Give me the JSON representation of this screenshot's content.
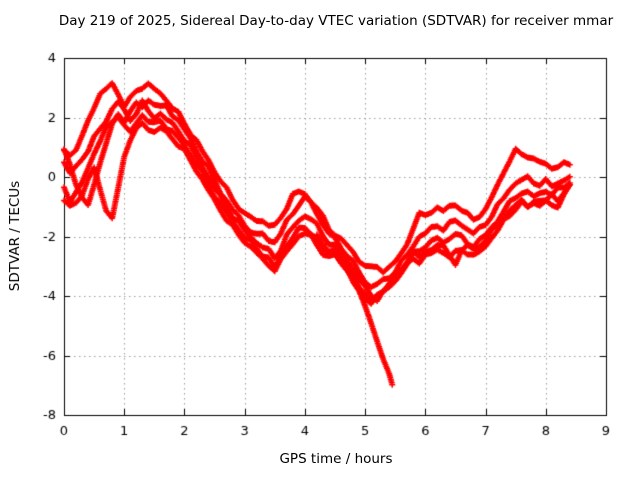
{
  "chart_data": {
    "type": "scatter",
    "title": "Day 219 of 2025, Sidereal Day-to-day VTEC variation (SDTVAR) for receiver mmar",
    "xlabel": "GPS time / hours",
    "ylabel": "SDTVAR / TECUs",
    "xlim": [
      0,
      9
    ],
    "ylim": [
      -8,
      4
    ],
    "x_ticks": [
      0,
      1,
      2,
      3,
      4,
      5,
      6,
      7,
      8,
      9
    ],
    "y_ticks": [
      -8,
      -6,
      -4,
      -2,
      0,
      2,
      4
    ],
    "grid": true,
    "legend": "none",
    "marker": "plus",
    "colors": {
      "marker": "#ff0000",
      "grid": "#9c9c9c",
      "frame": "#000000",
      "text": "#000000"
    },
    "x_step": 0.1,
    "series": [
      {
        "name": "trace-1",
        "x_start": 0.0,
        "values": [
          0.9,
          0.75,
          0.95,
          1.3,
          1.9,
          2.4,
          2.75,
          2.95,
          3.15,
          2.8,
          2.4,
          2.6,
          2.9,
          3.05,
          3.1,
          2.95,
          2.8,
          2.6,
          2.35,
          2.1,
          1.8,
          1.5,
          1.2,
          0.85,
          0.55,
          0.2,
          -0.1,
          -0.45,
          -0.75,
          -1.0,
          -1.25,
          -1.35,
          -1.5,
          -1.45,
          -1.6,
          -1.7,
          -1.35,
          -1.0,
          -0.6,
          -0.5,
          -0.6,
          -0.8,
          -1.0,
          -1.4,
          -1.75,
          -1.9,
          -2.1,
          -2.3,
          -2.55,
          -2.8,
          -2.95,
          -3.1,
          -3.0,
          -3.15,
          -3.05,
          -2.85,
          -2.6,
          -2.2,
          -1.7,
          -1.3,
          -1.25,
          -1.15,
          -1.05,
          -1.15,
          -1.0,
          -0.9,
          -1.1,
          -1.3,
          -1.4,
          -1.3,
          -1.1,
          -0.7,
          -0.3,
          0.2,
          0.55,
          0.85,
          0.8,
          0.7,
          0.6,
          0.5,
          0.4,
          0.35,
          0.35,
          0.4,
          0.45
        ]
      },
      {
        "name": "trace-2",
        "x_start": 0.0,
        "values": [
          0.85,
          0.4,
          -0.2,
          -0.7,
          -0.95,
          -0.3,
          0.5,
          1.2,
          1.7,
          2.1,
          1.9,
          2.2,
          2.5,
          2.3,
          2.6,
          2.5,
          2.3,
          2.4,
          2.1,
          1.9,
          1.6,
          1.25,
          0.9,
          0.6,
          0.25,
          -0.1,
          -0.5,
          -0.8,
          -1.1,
          -1.35,
          -1.6,
          -1.8,
          -2.0,
          -1.9,
          -2.1,
          -2.2,
          -1.9,
          -1.5,
          -1.2,
          -0.9,
          -0.75,
          -0.85,
          -1.2,
          -1.6,
          -1.9,
          -2.1,
          -2.35,
          -2.6,
          -2.9,
          -3.2,
          -3.5,
          -3.7,
          -3.6,
          -3.5,
          -3.35,
          -3.15,
          -2.9,
          -2.6,
          -2.3,
          -2.0,
          -1.9,
          -1.75,
          -1.6,
          -1.75,
          -1.6,
          -1.45,
          -1.6,
          -1.75,
          -1.9,
          -1.75,
          -1.55,
          -1.3,
          -1.0,
          -0.7,
          -0.4,
          -0.2,
          -0.1,
          -0.05,
          -0.15,
          -0.25,
          -0.15,
          -0.3,
          -0.2,
          -0.1,
          0.0
        ]
      },
      {
        "name": "trace-3",
        "x_start": 0.0,
        "values": [
          0.5,
          0.15,
          0.3,
          0.6,
          0.95,
          1.3,
          1.6,
          1.9,
          2.3,
          2.55,
          2.2,
          1.9,
          2.2,
          2.5,
          2.2,
          2.0,
          2.15,
          1.95,
          1.75,
          1.55,
          1.3,
          1.0,
          0.65,
          0.35,
          0.0,
          -0.35,
          -0.7,
          -1.0,
          -1.3,
          -1.55,
          -1.8,
          -2.0,
          -2.2,
          -2.35,
          -2.5,
          -2.7,
          -2.4,
          -2.0,
          -1.7,
          -1.45,
          -1.3,
          -1.4,
          -1.65,
          -1.95,
          -2.2,
          -2.35,
          -2.55,
          -2.8,
          -3.1,
          -3.45,
          -3.75,
          -3.95,
          -4.1,
          -3.9,
          -3.7,
          -3.5,
          -3.2,
          -2.9,
          -2.6,
          -2.45,
          -2.3,
          -2.2,
          -2.05,
          -2.2,
          -2.05,
          -1.9,
          -2.05,
          -2.2,
          -2.3,
          -2.15,
          -1.95,
          -1.7,
          -1.45,
          -1.15,
          -0.9,
          -0.65,
          -0.5,
          -0.55,
          -0.65,
          -0.55,
          -0.45,
          -0.6,
          -0.45,
          -0.3,
          -0.15
        ]
      },
      {
        "name": "trace-4",
        "x_start": 0.0,
        "values": [
          -0.35,
          -0.75,
          -0.55,
          -0.2,
          0.3,
          0.8,
          1.25,
          1.6,
          1.85,
          2.1,
          1.7,
          1.5,
          1.8,
          2.1,
          1.9,
          1.75,
          1.9,
          1.7,
          1.5,
          1.3,
          1.05,
          0.75,
          0.45,
          0.1,
          -0.25,
          -0.6,
          -0.9,
          -1.2,
          -1.5,
          -1.75,
          -2.0,
          -2.2,
          -2.4,
          -2.6,
          -2.75,
          -3.05,
          -2.7,
          -2.3,
          -2.0,
          -1.8,
          -1.7,
          -1.85,
          -2.1,
          -2.4,
          -2.6,
          -2.45,
          -2.7,
          -3.0,
          -3.3,
          -3.65,
          -3.95,
          -4.15,
          -4.0,
          -3.8,
          -3.55,
          -3.35,
          -3.1,
          -2.8,
          -2.55,
          -2.7,
          -2.55,
          -2.4,
          -2.25,
          -2.4,
          -2.6,
          -2.9,
          -2.5,
          -2.3,
          -2.45,
          -2.3,
          -2.1,
          -1.85,
          -1.6,
          -1.35,
          -1.15,
          -0.95,
          -0.8,
          -0.95,
          -0.8,
          -0.9,
          -0.75,
          -0.9,
          -1.05,
          -0.6,
          -0.3
        ]
      },
      {
        "name": "trace-5",
        "x_start": 0.0,
        "values": [
          -0.8,
          -1.0,
          -0.85,
          -0.55,
          -0.15,
          0.3,
          -0.35,
          -1.15,
          -1.4,
          -0.4,
          0.7,
          1.3,
          1.55,
          1.8,
          1.65,
          1.5,
          1.65,
          1.5,
          1.3,
          1.1,
          0.85,
          0.55,
          0.25,
          -0.1,
          -0.45,
          -0.8,
          -1.1,
          -1.4,
          -1.7,
          -1.95,
          -2.15,
          -2.35,
          -2.55,
          -2.8,
          -2.95,
          -3.1,
          -2.85,
          -2.5,
          -2.2,
          -2.0,
          -1.9,
          -2.0,
          -2.25,
          -2.55,
          -2.75,
          -2.6,
          -2.85,
          -3.15,
          -3.45,
          -3.8,
          -4.05,
          -4.2,
          -4.05,
          -3.85,
          -3.65,
          -3.45,
          -3.2,
          -2.95,
          -2.7,
          -2.85,
          -2.7,
          -2.55,
          -2.4,
          -2.55,
          -2.7,
          -2.55,
          -2.4,
          -2.55,
          -2.7,
          -2.5,
          -2.3,
          -2.05,
          -1.8,
          -1.5,
          -1.25,
          -1.05,
          -0.9,
          -1.0,
          -0.85,
          -0.95,
          -0.8,
          -0.65,
          -0.75,
          -0.5,
          -0.35
        ]
      },
      {
        "name": "trace-6-partial",
        "x": [
          4.2,
          4.3,
          4.4,
          4.5,
          4.6,
          4.7,
          4.8,
          4.9,
          5.0,
          5.1,
          5.2,
          5.3,
          5.4,
          5.45
        ],
        "values": [
          -1.95,
          -2.25,
          -2.5,
          -2.4,
          -2.7,
          -3.05,
          -3.45,
          -3.9,
          -4.35,
          -4.9,
          -5.5,
          -6.1,
          -6.7,
          -7.0
        ]
      }
    ]
  }
}
